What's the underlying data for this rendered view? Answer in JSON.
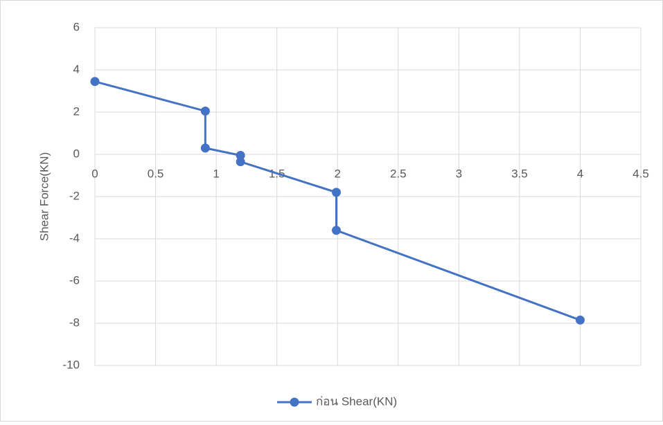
{
  "chart_data": {
    "type": "scatter",
    "y_label": "Shear Force(KN)",
    "x": [
      0,
      0.91,
      0.91,
      1.2,
      1.2,
      1.99,
      1.99,
      4
    ],
    "series": [
      {
        "name": "ก่อน Shear(KN)",
        "color": "#4472c4",
        "values": [
          3.45,
          2.05,
          0.3,
          -0.05,
          -0.35,
          -1.8,
          -3.6,
          -7.85
        ]
      }
    ],
    "xlim": [
      0,
      4.5
    ],
    "ylim": [
      -10,
      6
    ],
    "xticks": [
      0,
      0.5,
      1,
      1.5,
      2,
      2.5,
      3,
      3.5,
      4,
      4.5
    ],
    "yticks": [
      -10,
      -8,
      -6,
      -4,
      -2,
      0,
      2,
      4,
      6
    ],
    "grid": true,
    "legend": "bottom"
  }
}
